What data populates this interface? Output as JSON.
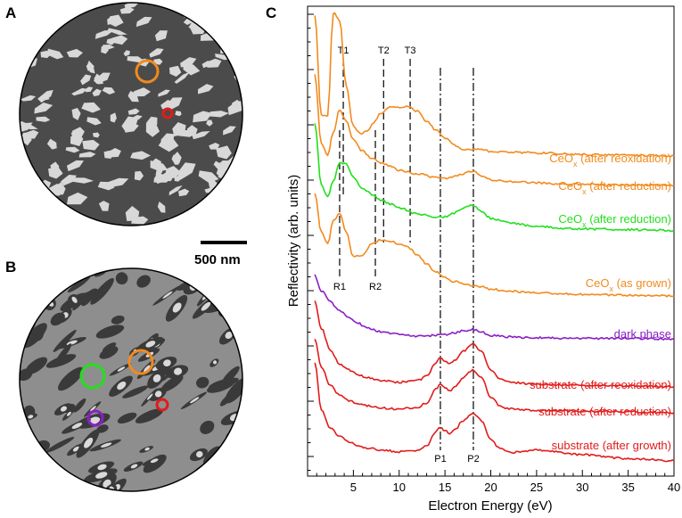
{
  "panels": {
    "A": {
      "letter": "A"
    },
    "B": {
      "letter": "B"
    },
    "C": {
      "letter": "C"
    }
  },
  "scale_bar": {
    "label": "500 nm"
  },
  "colors": {
    "orange": "#f28a1d",
    "green": "#22e01c",
    "purple": "#8a1fc4",
    "red": "#e21b1b",
    "microscope_a_bg": "#4a4a4a",
    "microscope_b_bg": "#8c8c8c"
  },
  "chart_data": {
    "type": "line",
    "title": "",
    "xlabel": "Electron Energy (eV)",
    "ylabel": "Reflectivity (arb. units)",
    "xlim": [
      0,
      40
    ],
    "xticks": [
      5,
      10,
      15,
      20,
      25,
      30,
      35,
      40
    ],
    "grid": false,
    "markers": [
      {
        "name": "T1",
        "x": 3.9,
        "style": "dash",
        "label_pos": "top"
      },
      {
        "name": "T2",
        "x": 8.3,
        "style": "dash",
        "label_pos": "top"
      },
      {
        "name": "T3",
        "x": 11.2,
        "style": "dash",
        "label_pos": "top"
      },
      {
        "name": "R1",
        "x": 3.5,
        "style": "dash",
        "label_pos": "bottom"
      },
      {
        "name": "R2",
        "x": 7.4,
        "style": "dash",
        "label_pos": "bottom"
      },
      {
        "name": "P1",
        "x": 14.5,
        "style": "dashdot",
        "label_pos": "bottom"
      },
      {
        "name": "P2",
        "x": 18.1,
        "style": "dashdot",
        "label_pos": "bottom"
      }
    ],
    "series": [
      {
        "name": "CeOx (after reoxidation)",
        "label_main": "CeO",
        "label_sub": "x",
        "label_rest": " (after reoxidation)",
        "color": "#f28a1d",
        "x": [
          0.8,
          1.5,
          2.2,
          2.8,
          3.5,
          4.2,
          5.0,
          5.8,
          6.5,
          7.2,
          8.0,
          9.0,
          10.0,
          11.0,
          12.0,
          13.0,
          14.0,
          15.0,
          16.0,
          17.0,
          18.0,
          19.0,
          20.0,
          22.0,
          25.0,
          30.0,
          35.0,
          40.0
        ],
        "y": [
          1.9,
          0.6,
          0.6,
          1.95,
          1.85,
          1.0,
          0.45,
          0.35,
          0.38,
          0.5,
          0.62,
          0.7,
          0.7,
          0.72,
          0.65,
          0.52,
          0.4,
          0.3,
          0.2,
          0.15,
          0.15,
          0.14,
          0.12,
          0.11,
          0.1,
          0.08,
          0.07,
          0.06
        ]
      },
      {
        "name": "CeOx (after reduction) orange",
        "label_main": "CeO",
        "label_sub": "x",
        "label_rest": " (after reduction)",
        "color": "#f28a1d",
        "x": [
          0.8,
          1.5,
          2.2,
          2.8,
          3.5,
          4.2,
          5.0,
          6.0,
          7.0,
          8.0,
          9.0,
          10.0,
          12.0,
          14.0,
          15.0,
          16.0,
          17.0,
          18.0,
          19.0,
          20.0,
          22.0,
          25.0,
          30.0,
          35.0,
          40.0
        ],
        "y": [
          1.5,
          0.6,
          0.45,
          0.75,
          1.05,
          0.9,
          0.65,
          0.5,
          0.4,
          0.35,
          0.3,
          0.25,
          0.2,
          0.15,
          0.14,
          0.16,
          0.2,
          0.24,
          0.18,
          0.12,
          0.1,
          0.08,
          0.06,
          0.05,
          0.05
        ]
      },
      {
        "name": "CeOx (after reduction) green",
        "label_main": "CeO",
        "label_sub": "x",
        "label_rest": " (after reduction)",
        "color": "#22e01c",
        "x": [
          0.8,
          1.5,
          2.2,
          2.8,
          3.5,
          4.2,
          5.0,
          6.0,
          7.0,
          8.0,
          9.0,
          10.0,
          12.0,
          14.0,
          15.0,
          16.0,
          17.0,
          18.0,
          19.0,
          20.0,
          22.0,
          25.0,
          30.0,
          35.0,
          40.0
        ],
        "y": [
          1.3,
          0.5,
          0.35,
          0.55,
          0.8,
          0.78,
          0.6,
          0.45,
          0.38,
          0.3,
          0.25,
          0.2,
          0.12,
          0.07,
          0.08,
          0.13,
          0.2,
          0.24,
          0.15,
          0.06,
          0.0,
          -0.05,
          -0.08,
          -0.09,
          -0.1
        ]
      },
      {
        "name": "CeOx (as grown)",
        "label_main": "CeO",
        "label_sub": "x",
        "label_rest": " (as grown)",
        "color": "#f28a1d",
        "x": [
          0.8,
          1.5,
          2.2,
          2.8,
          3.5,
          4.2,
          5.0,
          6.0,
          7.0,
          8.0,
          9.0,
          10.0,
          11.0,
          12.0,
          13.0,
          14.0,
          15.0,
          16.0,
          17.0,
          18.0,
          19.0,
          20.0,
          22.0,
          25.0,
          30.0,
          35.0,
          40.0
        ],
        "y": [
          1.2,
          0.7,
          0.55,
          0.85,
          0.95,
          0.7,
          0.38,
          0.4,
          0.55,
          0.6,
          0.58,
          0.55,
          0.5,
          0.4,
          0.28,
          0.18,
          0.1,
          0.05,
          0.02,
          0.0,
          -0.02,
          -0.05,
          -0.08,
          -0.1,
          -0.12,
          -0.13,
          -0.14
        ]
      },
      {
        "name": "dark phase",
        "label_main": "dark phase",
        "label_sub": "",
        "label_rest": "",
        "color": "#8a1fc4",
        "x": [
          0.8,
          1.5,
          2.5,
          3.5,
          4.5,
          5.5,
          6.5,
          8.0,
          10.0,
          12.0,
          14.0,
          15.0,
          16.0,
          17.0,
          18.0,
          19.0,
          20.0,
          22.0,
          25.0,
          30.0,
          35.0,
          40.0
        ],
        "y": [
          0.8,
          0.6,
          0.45,
          0.33,
          0.24,
          0.17,
          0.11,
          0.06,
          0.02,
          0.0,
          0.01,
          0.02,
          0.04,
          0.07,
          0.09,
          0.05,
          0.01,
          -0.01,
          -0.02,
          -0.03,
          -0.03,
          -0.04
        ]
      },
      {
        "name": "substrate (after reoxidation)",
        "label_main": "substrate (after reoxidation)",
        "label_sub": "",
        "label_rest": "",
        "color": "#e21b1b",
        "x": [
          0.8,
          1.5,
          2.5,
          3.5,
          4.5,
          5.5,
          6.5,
          8.0,
          10.0,
          12.0,
          13.0,
          14.0,
          14.5,
          15.0,
          15.5,
          16.0,
          17.0,
          18.0,
          19.0,
          20.0,
          21.0,
          22.0,
          25.0,
          30.0,
          35.0,
          40.0
        ],
        "y": [
          1.1,
          0.75,
          0.45,
          0.28,
          0.2,
          0.14,
          0.1,
          0.06,
          0.04,
          0.06,
          0.12,
          0.3,
          0.36,
          0.32,
          0.28,
          0.32,
          0.45,
          0.55,
          0.45,
          0.2,
          0.08,
          0.04,
          0.01,
          0.0,
          -0.01,
          -0.02
        ]
      },
      {
        "name": "substrate (after reduction)",
        "label_main": "substrate (after reduction)",
        "label_sub": "",
        "label_rest": "",
        "color": "#e21b1b",
        "x": [
          0.8,
          1.5,
          2.5,
          3.5,
          4.5,
          5.5,
          6.5,
          8.0,
          10.0,
          12.0,
          13.0,
          14.0,
          14.5,
          15.0,
          15.5,
          16.0,
          17.0,
          18.0,
          19.0,
          20.0,
          21.0,
          22.0,
          25.0,
          30.0,
          35.0,
          40.0
        ],
        "y": [
          0.95,
          0.6,
          0.35,
          0.22,
          0.15,
          0.11,
          0.08,
          0.05,
          0.04,
          0.06,
          0.12,
          0.3,
          0.36,
          0.32,
          0.28,
          0.32,
          0.45,
          0.55,
          0.45,
          0.2,
          0.08,
          0.04,
          0.02,
          0.01,
          0.0,
          -0.01
        ]
      },
      {
        "name": "substrate (after growth)",
        "label_main": "substrate (after growth)",
        "label_sub": "",
        "label_rest": "",
        "color": "#e21b1b",
        "x": [
          0.8,
          1.5,
          2.5,
          3.5,
          4.5,
          5.5,
          6.5,
          8.0,
          10.0,
          12.0,
          13.0,
          14.0,
          14.5,
          15.0,
          15.5,
          16.0,
          17.0,
          18.0,
          19.0,
          20.0,
          21.0,
          22.0,
          25.0,
          30.0,
          35.0,
          40.0
        ],
        "y": [
          1.2,
          0.6,
          0.35,
          0.24,
          0.17,
          0.12,
          0.09,
          0.06,
          0.04,
          0.06,
          0.12,
          0.3,
          0.36,
          0.32,
          0.28,
          0.32,
          0.45,
          0.55,
          0.45,
          0.2,
          0.08,
          0.03,
          0.06,
          0.0,
          -0.05,
          -0.08
        ]
      }
    ]
  }
}
